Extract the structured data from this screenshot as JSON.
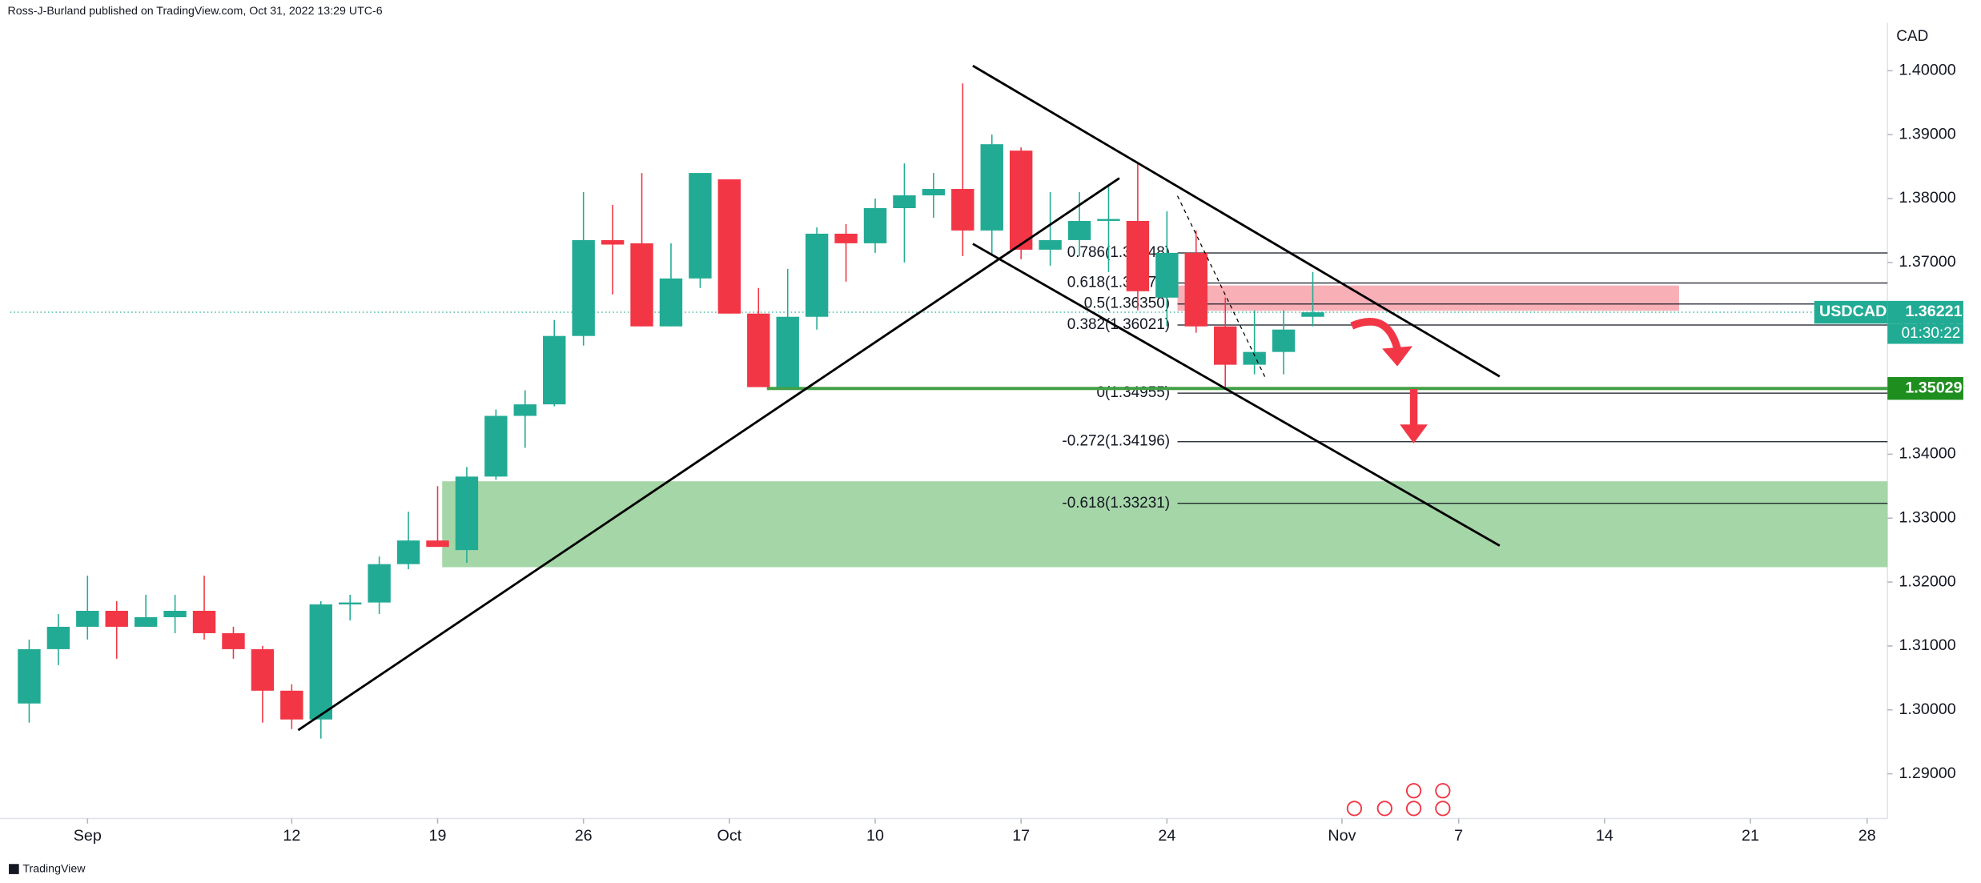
{
  "chart_data": {
    "type": "candlestick",
    "header": "Ross-J-Burland published on TradingView.com, Oct 31, 2022 13:29 UTC-6",
    "currency": "CAD",
    "footer": "TradingView",
    "up_color": "#22ab94",
    "down_color": "#f23645",
    "candles": [
      {
        "open": 1.301,
        "high": 1.311,
        "low": 1.298,
        "close": 1.3095
      },
      {
        "open": 1.3095,
        "high": 1.315,
        "low": 1.307,
        "close": 1.313
      },
      {
        "open": 1.313,
        "high": 1.321,
        "low": 1.311,
        "close": 1.3155
      },
      {
        "open": 1.3155,
        "high": 1.317,
        "low": 1.308,
        "close": 1.313
      },
      {
        "open": 1.313,
        "high": 1.318,
        "low": 1.313,
        "close": 1.3145
      },
      {
        "open": 1.3145,
        "high": 1.318,
        "low": 1.312,
        "close": 1.3155
      },
      {
        "open": 1.3155,
        "high": 1.321,
        "low": 1.311,
        "close": 1.312
      },
      {
        "open": 1.312,
        "high": 1.313,
        "low": 1.308,
        "close": 1.3095
      },
      {
        "open": 1.3095,
        "high": 1.31,
        "low": 1.298,
        "close": 1.303
      },
      {
        "open": 1.303,
        "high": 1.304,
        "low": 1.297,
        "close": 1.2985
      },
      {
        "open": 1.2985,
        "high": 1.317,
        "low": 1.2955,
        "close": 1.3165
      },
      {
        "open": 1.3165,
        "high": 1.318,
        "low": 1.314,
        "close": 1.3168
      },
      {
        "open": 1.3168,
        "high": 1.324,
        "low": 1.315,
        "close": 1.3228
      },
      {
        "open": 1.3228,
        "high": 1.331,
        "low": 1.322,
        "close": 1.3265
      },
      {
        "open": 1.3265,
        "high": 1.335,
        "low": 1.3255,
        "close": 1.3255
      },
      {
        "open": 1.325,
        "high": 1.338,
        "low": 1.323,
        "close": 1.3365
      },
      {
        "open": 1.3365,
        "high": 1.347,
        "low": 1.336,
        "close": 1.346
      },
      {
        "open": 1.346,
        "high": 1.35,
        "low": 1.341,
        "close": 1.3478
      },
      {
        "open": 1.3478,
        "high": 1.361,
        "low": 1.3475,
        "close": 1.3585
      },
      {
        "open": 1.3585,
        "high": 1.381,
        "low": 1.357,
        "close": 1.3735
      },
      {
        "open": 1.3735,
        "high": 1.379,
        "low": 1.365,
        "close": 1.3728
      },
      {
        "open": 1.373,
        "high": 1.384,
        "low": 1.36,
        "close": 1.36
      },
      {
        "open": 1.36,
        "high": 1.373,
        "low": 1.36,
        "close": 1.3675
      },
      {
        "open": 1.3675,
        "high": 1.384,
        "low": 1.366,
        "close": 1.384
      },
      {
        "open": 1.383,
        "high": 1.383,
        "low": 1.362,
        "close": 1.362
      },
      {
        "open": 1.362,
        "high": 1.366,
        "low": 1.3505,
        "close": 1.3505
      },
      {
        "open": 1.3505,
        "high": 1.369,
        "low": 1.3505,
        "close": 1.3615
      },
      {
        "open": 1.3615,
        "high": 1.3755,
        "low": 1.3595,
        "close": 1.3745
      },
      {
        "open": 1.3745,
        "high": 1.376,
        "low": 1.367,
        "close": 1.373
      },
      {
        "open": 1.373,
        "high": 1.38,
        "low": 1.3715,
        "close": 1.3785
      },
      {
        "open": 1.3785,
        "high": 1.3855,
        "low": 1.37,
        "close": 1.3805
      },
      {
        "open": 1.3805,
        "high": 1.384,
        "low": 1.377,
        "close": 1.3815
      },
      {
        "open": 1.3815,
        "high": 1.398,
        "low": 1.371,
        "close": 1.375
      },
      {
        "open": 1.375,
        "high": 1.39,
        "low": 1.371,
        "close": 1.3885
      },
      {
        "open": 1.3875,
        "high": 1.388,
        "low": 1.3705,
        "close": 1.372
      },
      {
        "open": 1.372,
        "high": 1.381,
        "low": 1.3695,
        "close": 1.3735
      },
      {
        "open": 1.3735,
        "high": 1.381,
        "low": 1.371,
        "close": 1.3765
      },
      {
        "open": 1.3765,
        "high": 1.382,
        "low": 1.3685,
        "close": 1.3768
      },
      {
        "open": 1.3765,
        "high": 1.3855,
        "low": 1.3625,
        "close": 1.3655
      },
      {
        "open": 1.3645,
        "high": 1.378,
        "low": 1.36,
        "close": 1.3715
      },
      {
        "open": 1.3715,
        "high": 1.375,
        "low": 1.359,
        "close": 1.36
      },
      {
        "open": 1.36,
        "high": 1.3645,
        "low": 1.3505,
        "close": 1.354
      },
      {
        "open": 1.354,
        "high": 1.3625,
        "low": 1.3525,
        "close": 1.356
      },
      {
        "open": 1.356,
        "high": 1.3625,
        "low": 1.3525,
        "close": 1.3595
      },
      {
        "open": 1.3615,
        "high": 1.3685,
        "low": 1.36,
        "close": 1.3622
      }
    ],
    "xlim": [
      -1,
      63.7
    ],
    "xticks": [
      {
        "value": 2,
        "label": "Sep"
      },
      {
        "value": 9,
        "label": "12"
      },
      {
        "value": 14,
        "label": "19"
      },
      {
        "value": 19,
        "label": "26"
      },
      {
        "value": 24,
        "label": "Oct"
      },
      {
        "value": 29,
        "label": "10"
      },
      {
        "value": 34,
        "label": "17"
      },
      {
        "value": 39,
        "label": "24"
      },
      {
        "value": 45,
        "label": "Nov"
      },
      {
        "value": 49,
        "label": "7"
      },
      {
        "value": 54,
        "label": "14"
      },
      {
        "value": 59,
        "label": "21"
      },
      {
        "value": 63,
        "label": "28"
      }
    ],
    "ylim": [
      1.283,
      1.4075
    ],
    "yticks": [
      {
        "value": 1.29,
        "label": "1.29000"
      },
      {
        "value": 1.3,
        "label": "1.30000"
      },
      {
        "value": 1.31,
        "label": "1.31000"
      },
      {
        "value": 1.32,
        "label": "1.32000"
      },
      {
        "value": 1.33,
        "label": "1.33000"
      },
      {
        "value": 1.34,
        "label": "1.34000"
      },
      {
        "value": 1.35,
        "label": "1.35000"
      },
      {
        "value": 1.36,
        "label": "1.36000"
      },
      {
        "value": 1.37,
        "label": "1.37000"
      },
      {
        "value": 1.38,
        "label": "1.38000"
      },
      {
        "value": 1.39,
        "label": "1.39000"
      },
      {
        "value": 1.4,
        "label": "1.40000"
      }
    ],
    "fib_levels": [
      {
        "label": "0.786(1.37148)",
        "value": 1.37148
      },
      {
        "label": "0.618(1.36679)",
        "value": 1.36679
      },
      {
        "label": "0.5(1.36350)",
        "value": 1.3635
      },
      {
        "label": "0.382(1.36021)",
        "value": 1.36021
      },
      {
        "label": "0(1.34955)",
        "value": 1.34955
      },
      {
        "label": "-0.272(1.34196)",
        "value": 1.34196
      },
      {
        "label": "-0.618(1.33231)",
        "value": 1.33231
      }
    ],
    "last_price": {
      "symbol": "USDCAD",
      "value": 1.36221,
      "countdown": "01:30:22"
    },
    "support_price": 1.35029
  }
}
